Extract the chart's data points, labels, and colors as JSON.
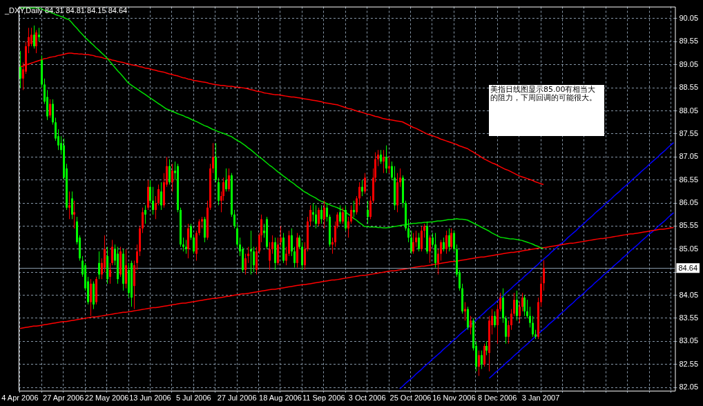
{
  "chart_data": {
    "type": "candlestick",
    "title": "_DXY,Daily 84.31 84.81 84.15 84.64",
    "annotations": [
      "美指日线图显示85.00有相当大的阻力，下周回调的可能很大。"
    ],
    "categories": [
      "4 Apr 2006",
      null,
      null,
      null,
      null,
      null,
      null,
      null,
      null,
      null,
      null,
      null,
      null,
      null,
      null,
      null,
      "27 Apr 2006",
      null,
      null,
      null,
      null,
      null,
      null,
      null,
      null,
      null,
      null,
      null,
      null,
      null,
      null,
      null,
      "22 May 2006",
      null,
      null,
      null,
      null,
      null,
      null,
      null,
      null,
      null,
      null,
      null,
      null,
      null,
      null,
      null,
      "13 Jun 2006",
      null,
      null,
      null,
      null,
      null,
      null,
      null,
      null,
      null,
      null,
      null,
      null,
      null,
      null,
      null,
      "5 Jul 2006",
      null,
      null,
      null,
      null,
      null,
      null,
      null,
      null,
      null,
      null,
      null,
      null,
      null,
      null,
      null,
      "27 Jul 2006",
      null,
      null,
      null,
      null,
      null,
      null,
      null,
      null,
      null,
      null,
      null,
      null,
      null,
      null,
      null,
      "18 Aug 2006",
      null,
      null,
      null,
      null,
      null,
      null,
      null,
      null,
      null,
      null,
      null,
      null,
      null,
      null,
      null,
      "11 Sep 2006",
      null,
      null,
      null,
      null,
      null,
      null,
      null,
      null,
      null,
      null,
      null,
      null,
      null,
      null,
      null,
      "3 Oct 2006",
      null,
      null,
      null,
      null,
      null,
      null,
      null,
      null,
      null,
      null,
      null,
      null,
      null,
      null,
      null,
      "25 Oct 2006",
      null,
      null,
      null,
      null,
      null,
      null,
      null,
      null,
      null,
      null,
      null,
      null,
      null,
      null,
      null,
      "16 Nov 2006",
      null,
      null,
      null,
      null,
      null,
      null,
      null,
      null,
      null,
      null,
      null,
      null,
      null,
      null,
      null,
      "8 Dec 2006",
      null,
      null,
      null,
      null,
      null,
      null,
      null,
      null,
      null,
      null,
      null,
      null,
      null,
      null,
      null,
      "3 Jan 2007",
      null,
      null,
      null,
      null,
      null,
      null,
      null,
      null,
      null,
      null,
      null,
      null,
      null,
      null,
      null,
      null,
      null,
      null,
      null,
      null,
      null,
      null,
      null,
      null,
      null,
      null,
      null,
      null,
      null,
      null,
      null,
      null,
      null,
      null,
      null,
      null,
      null,
      null,
      null,
      null,
      null,
      null,
      null,
      null,
      null,
      null,
      null,
      null,
      null
    ],
    "ohlc": [
      [
        89.0,
        89.35,
        88.55,
        88.75
      ],
      [
        88.75,
        89.1,
        88.5,
        88.95
      ],
      [
        88.9,
        89.55,
        88.85,
        89.45
      ],
      [
        89.45,
        89.85,
        89.3,
        89.65
      ],
      [
        89.5,
        89.85,
        89.45,
        89.7
      ],
      [
        89.7,
        89.9,
        89.4,
        89.45
      ],
      [
        89.45,
        89.8,
        89.3,
        89.75
      ],
      [
        89.7,
        89.85,
        89.55,
        89.65
      ],
      [
        89.15,
        89.25,
        88.55,
        88.62
      ],
      [
        88.62,
        88.75,
        88.2,
        88.25
      ],
      [
        88.35,
        88.5,
        87.85,
        87.93
      ],
      [
        87.95,
        88.3,
        87.9,
        88.2
      ],
      [
        88.2,
        88.3,
        87.75,
        87.8
      ],
      [
        87.8,
        87.9,
        87.4,
        87.45
      ],
      [
        87.5,
        87.65,
        87.2,
        87.3
      ],
      [
        87.35,
        87.5,
        87.1,
        87.2
      ],
      [
        87.3,
        87.45,
        86.55,
        86.6
      ],
      [
        86.8,
        86.9,
        85.9,
        85.95
      ],
      [
        85.95,
        86.3,
        85.7,
        86.0
      ],
      [
        86.15,
        86.3,
        85.7,
        85.8
      ],
      [
        85.8,
        86.1,
        85.5,
        85.85
      ],
      [
        85.65,
        85.75,
        85.15,
        85.2
      ],
      [
        85.3,
        85.35,
        84.8,
        84.85
      ],
      [
        84.8,
        84.9,
        84.45,
        84.5
      ],
      [
        84.7,
        84.75,
        84.15,
        84.2
      ],
      [
        84.35,
        84.45,
        83.85,
        83.9
      ],
      [
        83.9,
        84.4,
        83.6,
        84.3
      ],
      [
        84.3,
        84.35,
        83.75,
        83.85
      ],
      [
        83.9,
        84.45,
        83.85,
        84.4
      ],
      [
        84.75,
        85.0,
        84.4,
        84.5
      ],
      [
        84.5,
        84.85,
        84.4,
        84.75
      ],
      [
        84.65,
        85.35,
        84.55,
        85.05
      ],
      [
        84.9,
        85.1,
        84.3,
        84.4
      ],
      [
        84.45,
        84.75,
        84.3,
        84.6
      ],
      [
        84.75,
        85.25,
        84.7,
        85.1
      ],
      [
        85.05,
        85.15,
        84.7,
        84.8
      ],
      [
        84.95,
        85.1,
        84.3,
        84.4
      ],
      [
        84.5,
        85.1,
        84.45,
        85.0
      ],
      [
        84.95,
        85.05,
        84.15,
        84.3
      ],
      [
        84.3,
        85.05,
        84.2,
        84.7
      ],
      [
        84.6,
        84.75,
        84.0,
        84.1
      ],
      [
        84.75,
        84.8,
        83.8,
        84.0
      ],
      [
        84.25,
        84.8,
        83.75,
        84.7
      ],
      [
        84.75,
        85.15,
        84.6,
        85.0
      ],
      [
        85.0,
        85.55,
        84.9,
        85.5
      ],
      [
        85.5,
        85.95,
        85.4,
        85.85
      ],
      [
        85.9,
        86.0,
        85.6,
        85.8
      ],
      [
        85.95,
        86.55,
        85.9,
        86.4
      ],
      [
        86.4,
        86.55,
        86.05,
        86.1
      ],
      [
        86.1,
        86.4,
        85.8,
        85.9
      ],
      [
        85.9,
        86.2,
        85.7,
        86.05
      ],
      [
        86.05,
        86.45,
        86.0,
        86.35
      ],
      [
        86.3,
        86.5,
        85.9,
        86.0
      ],
      [
        86.0,
        86.7,
        85.95,
        86.5
      ],
      [
        86.45,
        87.05,
        86.4,
        86.85
      ],
      [
        86.85,
        87.0,
        86.45,
        86.5
      ],
      [
        86.5,
        86.9,
        86.3,
        86.75
      ],
      [
        86.75,
        86.95,
        86.55,
        86.7
      ],
      [
        86.85,
        86.9,
        85.85,
        85.9
      ],
      [
        85.9,
        85.95,
        85.1,
        85.15
      ],
      [
        85.15,
        85.3,
        85.0,
        85.1
      ],
      [
        85.1,
        85.25,
        84.95,
        85.05
      ],
      [
        85.05,
        85.6,
        84.85,
        85.5
      ],
      [
        85.55,
        85.6,
        85.25,
        85.3
      ],
      [
        85.3,
        85.35,
        84.95,
        85.0
      ],
      [
        84.95,
        85.45,
        84.8,
        85.4
      ],
      [
        85.4,
        85.7,
        85.35,
        85.65
      ],
      [
        85.65,
        85.75,
        85.5,
        85.7
      ],
      [
        85.7,
        85.75,
        85.2,
        85.3
      ],
      [
        85.3,
        86.1,
        85.25,
        85.95
      ],
      [
        85.95,
        86.9,
        85.9,
        86.8
      ],
      [
        86.8,
        87.35,
        86.7,
        87.05
      ],
      [
        87.05,
        87.35,
        86.5,
        86.55
      ],
      [
        86.5,
        86.6,
        86.0,
        86.1
      ],
      [
        86.1,
        86.3,
        85.85,
        86.2
      ],
      [
        86.2,
        86.6,
        86.1,
        86.5
      ],
      [
        86.55,
        86.8,
        86.3,
        86.35
      ],
      [
        86.35,
        86.8,
        86.3,
        86.65
      ],
      [
        86.65,
        86.7,
        85.75,
        85.8
      ],
      [
        85.8,
        85.9,
        85.5,
        85.55
      ],
      [
        85.5,
        85.6,
        85.1,
        85.15
      ],
      [
        85.15,
        85.3,
        84.9,
        85.0
      ],
      [
        85.05,
        85.1,
        84.55,
        84.6
      ],
      [
        84.6,
        84.95,
        84.5,
        84.85
      ],
      [
        84.9,
        85.1,
        84.75,
        84.95
      ],
      [
        85.05,
        85.45,
        84.5,
        85.0
      ],
      [
        85.0,
        85.1,
        84.55,
        84.7
      ],
      [
        84.6,
        85.1,
        84.5,
        85.0
      ],
      [
        85.0,
        85.4,
        84.95,
        85.35
      ],
      [
        85.35,
        85.8,
        85.2,
        85.7
      ],
      [
        85.45,
        85.6,
        85.3,
        85.4
      ],
      [
        85.7,
        85.75,
        85.05,
        85.1
      ],
      [
        84.8,
        85.2,
        84.6,
        85.05
      ],
      [
        85.05,
        85.35,
        84.95,
        85.2
      ],
      [
        85.2,
        85.3,
        84.6,
        84.75
      ],
      [
        84.75,
        85.3,
        84.7,
        85.15
      ],
      [
        85.2,
        85.55,
        85.1,
        85.3
      ],
      [
        85.3,
        85.4,
        84.75,
        84.8
      ],
      [
        84.8,
        85.1,
        84.7,
        84.95
      ],
      [
        84.95,
        85.45,
        84.9,
        85.35
      ],
      [
        85.35,
        85.5,
        84.9,
        85.0
      ],
      [
        85.0,
        85.1,
        84.65,
        84.75
      ],
      [
        84.75,
        85.4,
        84.65,
        85.3
      ],
      [
        85.3,
        85.35,
        85.05,
        85.1
      ],
      [
        85.1,
        85.2,
        84.6,
        84.7
      ],
      [
        84.7,
        85.2,
        84.6,
        85.05
      ],
      [
        85.05,
        85.75,
        85.0,
        85.65
      ],
      [
        85.65,
        86.0,
        85.55,
        85.9
      ],
      [
        85.85,
        86.05,
        85.65,
        85.8
      ],
      [
        85.8,
        86.0,
        85.5,
        85.6
      ],
      [
        85.6,
        85.95,
        85.55,
        85.9
      ],
      [
        85.9,
        86.0,
        85.6,
        85.7
      ],
      [
        85.7,
        86.1,
        85.5,
        85.95
      ],
      [
        85.95,
        86.05,
        85.65,
        85.75
      ],
      [
        85.75,
        85.8,
        85.1,
        85.15
      ],
      [
        85.15,
        85.3,
        84.95,
        85.2
      ],
      [
        85.2,
        85.65,
        85.1,
        85.55
      ],
      [
        85.55,
        85.85,
        85.5,
        85.8
      ],
      [
        85.85,
        86.0,
        85.6,
        85.65
      ],
      [
        85.65,
        85.95,
        85.6,
        85.85
      ],
      [
        85.9,
        86.0,
        85.45,
        85.5
      ],
      [
        85.5,
        85.75,
        85.3,
        85.65
      ],
      [
        85.65,
        86.0,
        85.6,
        85.9
      ],
      [
        85.9,
        86.1,
        85.75,
        85.85
      ],
      [
        85.85,
        86.2,
        85.8,
        86.15
      ],
      [
        86.15,
        86.5,
        86.0,
        86.4
      ],
      [
        86.4,
        86.55,
        86.2,
        86.3
      ],
      [
        86.3,
        86.7,
        86.25,
        86.6
      ],
      [
        85.9,
        86.1,
        85.6,
        85.75
      ],
      [
        85.75,
        86.2,
        85.7,
        86.1
      ],
      [
        86.1,
        86.8,
        86.05,
        86.6
      ],
      [
        86.6,
        87.15,
        86.5,
        87.0
      ],
      [
        87.0,
        87.2,
        86.85,
        87.1
      ],
      [
        87.1,
        87.2,
        86.9,
        86.95
      ],
      [
        86.95,
        87.2,
        86.7,
        87.05
      ],
      [
        87.05,
        87.3,
        86.7,
        86.8
      ],
      [
        86.8,
        87.05,
        86.7,
        86.85
      ],
      [
        86.85,
        86.95,
        86.55,
        86.6
      ],
      [
        86.6,
        86.85,
        85.9,
        86.0
      ],
      [
        86.0,
        86.7,
        85.85,
        86.5
      ],
      [
        86.5,
        86.8,
        86.4,
        86.6
      ],
      [
        86.6,
        86.65,
        85.95,
        86.05
      ],
      [
        86.05,
        86.1,
        85.45,
        85.5
      ],
      [
        85.5,
        85.7,
        85.2,
        85.3
      ],
      [
        85.3,
        85.45,
        84.95,
        85.0
      ],
      [
        85.0,
        85.4,
        84.95,
        85.2
      ],
      [
        85.2,
        85.45,
        85.1,
        85.3
      ],
      [
        85.3,
        85.4,
        85.0,
        85.05
      ],
      [
        85.05,
        85.55,
        85.0,
        85.45
      ],
      [
        85.45,
        85.6,
        85.3,
        85.55
      ],
      [
        85.55,
        85.65,
        84.95,
        85.0
      ],
      [
        85.0,
        85.35,
        84.75,
        85.3
      ],
      [
        85.3,
        85.4,
        85.1,
        85.15
      ],
      [
        85.15,
        85.4,
        84.65,
        84.75
      ],
      [
        84.75,
        85.05,
        84.5,
        84.95
      ],
      [
        84.95,
        85.25,
        84.8,
        85.2
      ],
      [
        85.2,
        85.3,
        85.0,
        85.05
      ],
      [
        85.05,
        85.45,
        84.95,
        85.35
      ],
      [
        85.35,
        85.5,
        85.0,
        85.1
      ],
      [
        85.1,
        85.5,
        85.05,
        85.4
      ],
      [
        85.4,
        85.45,
        85.0,
        85.05
      ],
      [
        85.05,
        85.15,
        84.45,
        84.5
      ],
      [
        84.55,
        84.6,
        84.15,
        84.2
      ],
      [
        84.2,
        84.3,
        83.65,
        83.7
      ],
      [
        83.7,
        83.9,
        83.5,
        83.75
      ],
      [
        83.75,
        83.8,
        83.3,
        83.35
      ],
      [
        83.35,
        83.6,
        83.2,
        83.5
      ],
      [
        83.5,
        83.55,
        82.85,
        82.9
      ],
      [
        82.95,
        83.05,
        82.4,
        82.5
      ],
      [
        82.5,
        82.85,
        82.3,
        82.75
      ],
      [
        82.75,
        82.85,
        82.45,
        82.55
      ],
      [
        82.55,
        83.0,
        82.5,
        82.95
      ],
      [
        82.95,
        83.05,
        82.75,
        82.85
      ],
      [
        82.8,
        83.6,
        82.4,
        83.5
      ],
      [
        83.4,
        83.75,
        83.2,
        83.6
      ],
      [
        83.6,
        83.7,
        83.35,
        83.4
      ],
      [
        83.4,
        83.85,
        83.0,
        83.75
      ],
      [
        83.75,
        84.1,
        83.7,
        84.0
      ],
      [
        84.0,
        84.2,
        83.45,
        83.55
      ],
      [
        83.55,
        83.6,
        83.0,
        83.15
      ],
      [
        83.15,
        83.5,
        83.0,
        83.4
      ],
      [
        83.4,
        83.75,
        83.3,
        83.65
      ],
      [
        83.65,
        84.1,
        83.6,
        83.95
      ],
      [
        83.95,
        84.15,
        83.5,
        83.6
      ],
      [
        83.6,
        83.9,
        83.45,
        83.8
      ],
      [
        83.8,
        84.1,
        83.7,
        84.0
      ],
      [
        84.0,
        84.05,
        83.6,
        83.7
      ],
      [
        83.7,
        83.95,
        83.55,
        83.6
      ],
      [
        83.6,
        83.8,
        83.35,
        83.45
      ],
      [
        83.45,
        83.6,
        83.15,
        83.2
      ],
      [
        83.2,
        83.3,
        83.1,
        83.15
      ],
      [
        83.15,
        84.0,
        83.1,
        83.9
      ],
      [
        83.9,
        84.45,
        83.8,
        84.3
      ],
      [
        84.31,
        84.81,
        84.15,
        84.64
      ],
      null,
      null,
      null,
      null,
      null,
      null,
      null,
      null,
      null,
      null,
      null,
      null,
      null,
      null,
      null,
      null,
      null,
      null,
      null,
      null,
      null,
      null,
      null,
      null,
      null,
      null,
      null,
      null,
      null,
      null,
      null,
      null,
      null,
      null,
      null,
      null,
      null,
      null,
      null,
      null,
      null,
      null,
      null,
      null,
      null,
      null,
      null,
      null
    ],
    "series": [
      {
        "type": "line",
        "color": "#00e000",
        "values": [
          90.28,
          90.28,
          90.28,
          90.28,
          90.28,
          90.28,
          90.28,
          90.28,
          90.26,
          90.23,
          90.21,
          90.19,
          90.17,
          90.14,
          90.12,
          90.1,
          90.08,
          90.05,
          90.03,
          89.97,
          89.9,
          89.84,
          89.77,
          89.71,
          89.64,
          89.59,
          89.53,
          89.48,
          89.42,
          89.37,
          89.31,
          89.26,
          89.2,
          89.13,
          89.06,
          88.99,
          88.92,
          88.86,
          88.79,
          88.72,
          88.65,
          88.61,
          88.57,
          88.53,
          88.49,
          88.45,
          88.41,
          88.37,
          88.33,
          88.29,
          88.25,
          88.21,
          88.17,
          88.13,
          88.09,
          88.07,
          88.04,
          88.02,
          87.99,
          87.97,
          87.95,
          87.92,
          87.9,
          87.87,
          87.84,
          87.82,
          87.79,
          87.76,
          87.73,
          87.71,
          87.68,
          87.65,
          87.63,
          87.6,
          87.58,
          87.56,
          87.54,
          87.51,
          87.49,
          87.45,
          87.41,
          87.38,
          87.34,
          87.3,
          87.25,
          87.21,
          87.16,
          87.11,
          87.06,
          87.02,
          86.97,
          86.92,
          86.87,
          86.83,
          86.78,
          86.73,
          86.69,
          86.64,
          86.6,
          86.55,
          86.51,
          86.47,
          86.42,
          86.38,
          86.33,
          86.29,
          86.26,
          86.22,
          86.19,
          86.16,
          86.12,
          86.09,
          86.07,
          86.04,
          86.02,
          85.99,
          85.97,
          85.95,
          85.92,
          85.9,
          85.86,
          85.81,
          85.77,
          85.72,
          85.68,
          85.63,
          85.59,
          85.54,
          85.54,
          85.53,
          85.53,
          85.53,
          85.52,
          85.52,
          85.51,
          85.51,
          85.52,
          85.53,
          85.54,
          85.55,
          85.56,
          85.57,
          85.58,
          85.59,
          85.6,
          85.61,
          85.61,
          85.62,
          85.62,
          85.63,
          85.63,
          85.64,
          85.64,
          85.65,
          85.66,
          85.66,
          85.67,
          85.68,
          85.69,
          85.69,
          85.7,
          85.71,
          85.7,
          85.7,
          85.69,
          85.68,
          85.65,
          85.62,
          85.59,
          85.56,
          85.53,
          85.5,
          85.47,
          85.44,
          85.4,
          85.37,
          85.34,
          85.31,
          85.3,
          85.29,
          85.28,
          85.27,
          85.27,
          85.26,
          85.25,
          85.24,
          85.22,
          85.2,
          85.18,
          85.16,
          85.13,
          85.11,
          85.08,
          85.06,
          null,
          null,
          null,
          null,
          null,
          null,
          null,
          null,
          null,
          null,
          null,
          null,
          null,
          null,
          null,
          null,
          null,
          null,
          null,
          null,
          null,
          null,
          null,
          null,
          null,
          null,
          null,
          null,
          null,
          null,
          null,
          null,
          null,
          null,
          null,
          null,
          null,
          null,
          null,
          null,
          null,
          null,
          null,
          null,
          null,
          null,
          null,
          null
        ]
      },
      {
        "type": "line",
        "color": "#ff0000",
        "values": [
          89.0,
          89.02,
          89.04,
          89.06,
          89.08,
          89.1,
          89.12,
          89.14,
          89.16,
          89.18,
          89.19,
          89.21,
          89.22,
          89.23,
          89.25,
          89.26,
          89.27,
          89.29,
          89.3,
          89.3,
          89.29,
          89.29,
          89.28,
          89.28,
          89.27,
          89.27,
          89.26,
          89.25,
          89.23,
          89.22,
          89.21,
          89.19,
          89.18,
          89.17,
          89.15,
          89.14,
          89.12,
          89.11,
          89.1,
          89.08,
          89.07,
          89.05,
          89.04,
          89.03,
          89.01,
          89.0,
          88.98,
          88.97,
          88.96,
          88.94,
          88.93,
          88.91,
          88.9,
          88.89,
          88.87,
          88.85,
          88.84,
          88.82,
          88.81,
          88.79,
          88.77,
          88.76,
          88.74,
          88.73,
          88.71,
          88.7,
          88.69,
          88.68,
          88.67,
          88.66,
          88.64,
          88.63,
          88.62,
          88.61,
          88.6,
          88.6,
          88.59,
          88.58,
          88.58,
          88.57,
          88.56,
          88.56,
          88.55,
          88.54,
          88.53,
          88.51,
          88.5,
          88.48,
          88.47,
          88.46,
          88.44,
          88.43,
          88.42,
          88.41,
          88.4,
          88.4,
          88.39,
          88.38,
          88.37,
          88.36,
          88.35,
          88.35,
          88.34,
          88.33,
          88.32,
          88.31,
          88.3,
          88.29,
          88.28,
          88.27,
          88.26,
          88.25,
          88.23,
          88.22,
          88.21,
          88.2,
          88.19,
          88.18,
          88.16,
          88.14,
          88.12,
          88.1,
          88.09,
          88.07,
          88.05,
          88.03,
          88.02,
          88.0,
          87.98,
          87.97,
          87.95,
          87.93,
          87.92,
          87.9,
          87.88,
          87.87,
          87.86,
          87.85,
          87.84,
          87.83,
          87.82,
          87.81,
          87.78,
          87.75,
          87.72,
          87.69,
          87.67,
          87.64,
          87.61,
          87.58,
          87.55,
          87.53,
          87.51,
          87.49,
          87.47,
          87.44,
          87.42,
          87.4,
          87.38,
          87.36,
          87.34,
          87.32,
          87.29,
          87.27,
          87.25,
          87.23,
          87.19,
          87.16,
          87.12,
          87.09,
          87.05,
          87.01,
          86.98,
          86.95,
          86.92,
          86.9,
          86.87,
          86.84,
          86.81,
          86.78,
          86.76,
          86.73,
          86.7,
          86.67,
          86.64,
          86.62,
          86.6,
          86.58,
          86.56,
          86.54,
          86.51,
          86.49,
          86.47,
          86.45,
          null,
          null,
          null,
          null,
          null,
          null,
          null,
          null,
          null,
          null,
          null,
          null,
          null,
          null,
          null,
          null,
          null,
          null,
          null,
          null,
          null,
          null,
          null,
          null,
          null,
          null,
          null,
          null,
          null,
          null,
          null,
          null,
          null,
          null,
          null,
          null,
          null,
          null,
          null,
          null,
          null,
          null,
          null,
          null,
          null,
          null,
          null,
          null
        ]
      },
      {
        "type": "line",
        "color": "#ff0000",
        "values": [
          83.33,
          83.34,
          83.35,
          83.36,
          83.37,
          83.38,
          83.38,
          83.39,
          83.4,
          83.41,
          83.42,
          83.43,
          83.44,
          83.45,
          83.46,
          83.47,
          83.48,
          83.48,
          83.49,
          83.5,
          83.51,
          83.52,
          83.53,
          83.54,
          83.55,
          83.56,
          83.57,
          83.58,
          83.58,
          83.59,
          83.6,
          83.61,
          83.62,
          83.63,
          83.64,
          83.65,
          83.66,
          83.67,
          83.68,
          83.68,
          83.69,
          83.7,
          83.71,
          83.72,
          83.73,
          83.74,
          83.75,
          83.76,
          83.77,
          83.78,
          83.78,
          83.79,
          83.8,
          83.81,
          83.82,
          83.83,
          83.84,
          83.85,
          83.86,
          83.87,
          83.88,
          83.88,
          83.89,
          83.9,
          83.91,
          83.92,
          83.93,
          83.94,
          83.95,
          83.96,
          83.97,
          83.98,
          83.98,
          83.99,
          84.0,
          84.01,
          84.02,
          84.03,
          84.04,
          84.05,
          84.06,
          84.07,
          84.08,
          84.08,
          84.09,
          84.1,
          84.11,
          84.12,
          84.13,
          84.14,
          84.15,
          84.16,
          84.17,
          84.18,
          84.18,
          84.19,
          84.2,
          84.21,
          84.22,
          84.23,
          84.24,
          84.25,
          84.26,
          84.27,
          84.28,
          84.28,
          84.29,
          84.3,
          84.31,
          84.32,
          84.33,
          84.34,
          84.35,
          84.36,
          84.37,
          84.38,
          84.38,
          84.39,
          84.4,
          84.41,
          84.42,
          84.43,
          84.44,
          84.45,
          84.46,
          84.47,
          84.48,
          84.48,
          84.49,
          84.5,
          84.51,
          84.52,
          84.53,
          84.54,
          84.55,
          84.56,
          84.57,
          84.58,
          84.58,
          84.59,
          84.6,
          84.61,
          84.62,
          84.63,
          84.64,
          84.65,
          84.66,
          84.67,
          84.68,
          84.68,
          84.69,
          84.7,
          84.71,
          84.72,
          84.73,
          84.74,
          84.75,
          84.76,
          84.77,
          84.78,
          84.78,
          84.79,
          84.8,
          84.81,
          84.82,
          84.83,
          84.84,
          84.85,
          84.86,
          84.87,
          84.88,
          84.88,
          84.89,
          84.9,
          84.91,
          84.92,
          84.93,
          84.94,
          84.95,
          84.96,
          84.97,
          84.98,
          84.98,
          84.99,
          85.0,
          85.01,
          85.02,
          85.03,
          85.04,
          85.05,
          85.06,
          85.07,
          85.08,
          85.08,
          85.09,
          85.1,
          85.11,
          85.12,
          85.13,
          85.14,
          85.15,
          85.16,
          85.17,
          85.18,
          85.18,
          85.19,
          85.2,
          85.21,
          85.22,
          85.23,
          85.24,
          85.25,
          85.26,
          85.27,
          85.28,
          85.28,
          85.29,
          85.3,
          85.31,
          85.32,
          85.33,
          85.34,
          85.35,
          85.36,
          85.37,
          85.38,
          85.38,
          85.39,
          85.4,
          85.41,
          85.42,
          85.43,
          85.44,
          85.45,
          85.46,
          85.47,
          85.48,
          85.48,
          85.49,
          85.5,
          85.51,
          85.52
        ]
      },
      {
        "type": "line",
        "color": "#0000ff",
        "values": [
          null,
          null,
          null,
          null,
          null,
          null,
          null,
          null,
          null,
          null,
          null,
          null,
          null,
          null,
          null,
          null,
          null,
          null,
          null,
          null,
          null,
          null,
          null,
          null,
          null,
          null,
          null,
          null,
          null,
          null,
          null,
          null,
          null,
          null,
          null,
          null,
          null,
          null,
          null,
          null,
          null,
          null,
          null,
          null,
          null,
          null,
          null,
          null,
          null,
          null,
          null,
          null,
          null,
          null,
          null,
          null,
          null,
          null,
          null,
          null,
          null,
          null,
          null,
          null,
          null,
          null,
          null,
          null,
          null,
          null,
          null,
          null,
          null,
          null,
          null,
          null,
          null,
          null,
          null,
          null,
          null,
          null,
          null,
          null,
          null,
          null,
          null,
          null,
          null,
          null,
          null,
          null,
          null,
          null,
          null,
          null,
          null,
          null,
          null,
          null,
          null,
          null,
          null,
          null,
          null,
          null,
          null,
          null,
          null,
          null,
          null,
          null,
          null,
          null,
          null,
          null,
          null,
          null,
          null,
          null,
          null,
          null,
          null,
          null,
          null,
          null,
          null,
          null,
          null,
          null,
          null,
          null,
          null,
          null,
          null,
          null,
          null,
          null,
          null,
          null,
          82.02,
          82.07,
          82.13,
          82.18,
          82.23,
          82.28,
          82.34,
          82.39,
          82.44,
          82.5,
          82.55,
          82.6,
          82.66,
          82.71,
          82.76,
          82.81,
          82.87,
          82.92,
          82.97,
          83.03,
          83.08,
          83.13,
          83.19,
          83.24,
          83.29,
          83.34,
          83.4,
          83.45,
          83.5,
          83.56,
          83.61,
          83.66,
          83.72,
          83.77,
          83.82,
          83.87,
          83.93,
          83.98,
          84.03,
          84.09,
          84.14,
          84.19,
          84.25,
          84.3,
          84.35,
          84.4,
          84.46,
          84.51,
          84.56,
          84.62,
          84.67,
          84.72,
          84.78,
          84.83,
          84.88,
          84.93,
          84.99,
          85.04,
          85.09,
          85.15,
          85.19,
          85.24,
          85.3,
          85.35,
          85.4,
          85.45,
          85.51,
          85.56,
          85.61,
          85.67,
          85.72,
          85.77,
          85.83,
          85.88,
          85.93,
          85.98,
          86.04,
          86.09,
          86.14,
          86.2,
          86.25,
          86.3,
          86.36,
          86.41,
          86.46,
          86.51,
          86.57,
          86.62,
          86.67,
          86.73,
          86.78,
          86.83,
          86.89,
          86.94,
          86.99,
          87.04,
          87.1,
          87.15,
          87.2,
          87.26,
          87.31,
          87.36
        ]
      },
      {
        "type": "line",
        "color": "#0000ff",
        "values": [
          null,
          null,
          null,
          null,
          null,
          null,
          null,
          null,
          null,
          null,
          null,
          null,
          null,
          null,
          null,
          null,
          null,
          null,
          null,
          null,
          null,
          null,
          null,
          null,
          null,
          null,
          null,
          null,
          null,
          null,
          null,
          null,
          null,
          null,
          null,
          null,
          null,
          null,
          null,
          null,
          null,
          null,
          null,
          null,
          null,
          null,
          null,
          null,
          null,
          null,
          null,
          null,
          null,
          null,
          null,
          null,
          null,
          null,
          null,
          null,
          null,
          null,
          null,
          null,
          null,
          null,
          null,
          null,
          null,
          null,
          null,
          null,
          null,
          null,
          null,
          null,
          null,
          null,
          null,
          null,
          null,
          null,
          null,
          null,
          null,
          null,
          null,
          null,
          null,
          null,
          null,
          null,
          null,
          null,
          null,
          null,
          null,
          null,
          null,
          null,
          null,
          null,
          null,
          null,
          null,
          null,
          null,
          null,
          null,
          null,
          null,
          null,
          null,
          null,
          null,
          null,
          null,
          null,
          null,
          null,
          null,
          null,
          null,
          null,
          null,
          null,
          null,
          null,
          null,
          null,
          null,
          null,
          null,
          null,
          null,
          null,
          null,
          null,
          null,
          null,
          null,
          null,
          null,
          null,
          null,
          null,
          null,
          null,
          null,
          null,
          null,
          null,
          null,
          null,
          null,
          null,
          null,
          null,
          null,
          null,
          null,
          null,
          null,
          null,
          null,
          null,
          null,
          null,
          null,
          null,
          null,
          null,
          null,
          82.25,
          82.3,
          82.36,
          82.41,
          82.46,
          82.51,
          82.57,
          82.62,
          82.67,
          82.73,
          82.78,
          82.83,
          82.89,
          82.94,
          82.99,
          83.04,
          83.1,
          83.15,
          83.2,
          83.26,
          83.31,
          83.36,
          83.42,
          83.47,
          83.52,
          83.57,
          83.63,
          83.68,
          83.73,
          83.79,
          83.84,
          83.89,
          83.95,
          84.0,
          84.05,
          84.1,
          84.16,
          84.21,
          84.26,
          84.32,
          84.37,
          84.42,
          84.48,
          84.53,
          84.58,
          84.63,
          84.69,
          84.74,
          84.79,
          84.85,
          84.9,
          84.95,
          85.01,
          85.06,
          85.11,
          85.16,
          85.22,
          85.27,
          85.32,
          85.38,
          85.42,
          85.47,
          85.53,
          85.58,
          85.63,
          85.68,
          85.74,
          85.79,
          85.84
        ]
      }
    ],
    "ylim": [
      81.98,
      90.31
    ],
    "yticks": [
      82.05,
      82.55,
      83.05,
      83.55,
      84.05,
      {
        "value": 84.55,
        "label": null
      },
      85.05,
      85.55,
      86.05,
      86.55,
      87.05,
      87.55,
      88.05,
      88.55,
      89.05,
      89.55,
      90.05
    ],
    "ref_lines": [
      {
        "axis": "y",
        "value": 84.64,
        "label": "84.64",
        "color": "#8899aa"
      }
    ],
    "grid": true,
    "marker": "none",
    "line_style": "solid",
    "legend": false
  }
}
